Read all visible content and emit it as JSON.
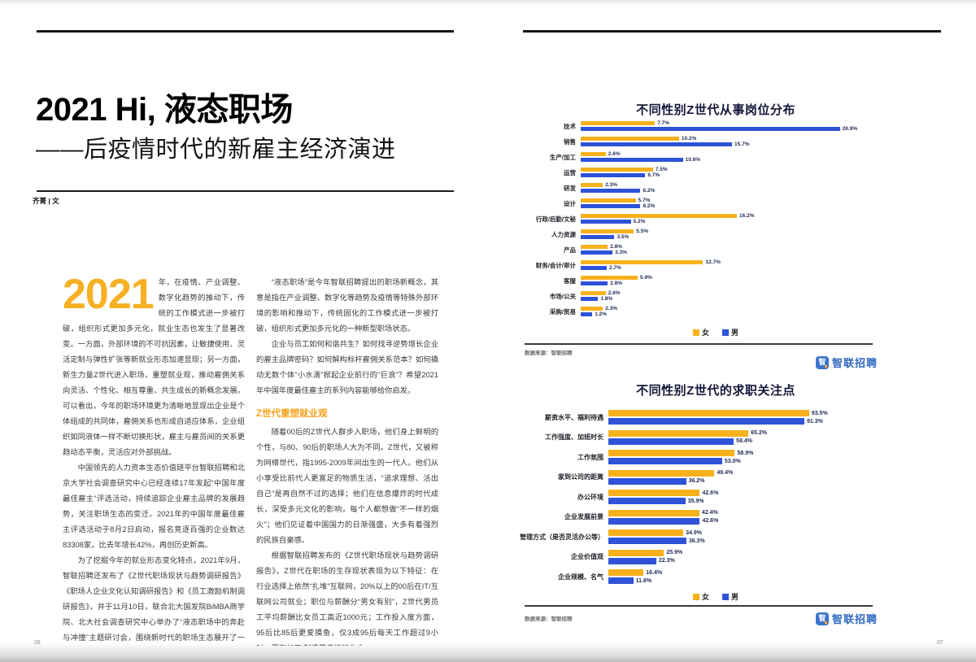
{
  "left_page": {
    "page_number": "06",
    "title": "2021 Hi, 液态职场",
    "subtitle": "——后疫情时代的新雇主经济演进",
    "byline": "齐菁 | 文",
    "dropcap": "2021",
    "col1_paragraphs": [
      "年，在疫情、产业调整、数字化趋势的推动下，传统的工作模式进一步被打破，组织形式更加多元化，就业生态也发生了显著改变。一方面，外部环境的不可抗因素，让敏捷使用、灵活定制与弹性扩张等新就业形态加速显现；另一方面，新生力量Z世代进入职场，重塑就业观，推动雇佣关系向灵活、个性化、相互尊重、共生成长的新概念发展。可以看出，今年的职场环境更为清晰地显现出企业是个体组成的共同体，雇佣关系也形成自适应体系，企业组织如同液体一样不断切换形状，雇主与雇员间的关系更趋动态平衡，灵活应对外部挑战。",
      "中国领先的人力资本生态价值链平台智联招聘和北京大学社会调查研究中心已经连续17年发起“中国年度最佳雇主”评选活动，持续追踪企业雇主品牌的发展趋势，关注职场生态的变迁。2021年的中国年度最佳雇主评选活动于8月2日启动，报名竞逐百强的企业数达83308家，比去年增长42%，再创历史新高。",
      "为了挖掘今年的就业形态变化特点，2021年9月，智联招聘还发布了《Z世代职场现状与趋势调研报告》《职场人企业文化认知调研报告》和《员工激励机制调研报告》，并于11月10日，联合北大国发院BiMBA商学院、北大社会调查研究中心举办了“液态职场中的奔赴与冲撞”主题研讨会，围绕新时代的职场生态展开了一场别开生面的思想碰撞。"
    ],
    "col2_paragraphs_before": [
      "“液态职场”是今年智联招聘提出的职场新概念，其意是指在产业调整、数字化等趋势及疫情等特殊外部环境的影响和推动下，传统固化的工作模式进一步被打破，组织形式更加多元化的一种新型职场状态。",
      "企业与员工如何和谐共生？如何找寻逆势增长企业的雇主品牌密码？如何解构标杆雇佣关系范本？如何撬动无数个体“小水滴”掀起企业前行的“巨浪”？希望2021年中国年度最佳雇主的系列内容能够给你启发。"
    ],
    "section_heading": "Z世代重塑就业观",
    "col2_paragraphs_after": [
      "随着00后的Z世代人群步入职场，他们身上鲜明的个性，与80、90后的职场人大为不同。Z世代，又被称为网络世代，指1995-2009年间出生的一代人。他们从小享受比前代人更富足的物质生活，“追求理想、活出自己”是再自然不过的选择；他们在信息爆炸的时代成长，深受多元文化的影响，每个人都想做“不一样的烟火”；他们见证着中国国力的日渐强盛，大多有着强烈的民族自豪感。",
      "根据智联招聘发布的《Z世代职场现状与趋势调研报告》，Z世代在职场的生存现状表现为以下特征：在行业选择上依然“扎堆”互联网，20%以上的00后在IT/互联网公司就业；职位与薪酬分“男女有别”，Z世代男员工平均薪酬比女员工高近1000元；工作投入度方面，95后比85后更爱摸鱼，仅3成95后每天工作超过9小时，而在加工/制造等传统行业中……"
    ]
  },
  "right_page": {
    "page_number": "07",
    "source_label": "数据来源：智联招聘",
    "logo_text": "智联招聘",
    "logo_glyph": "智",
    "legend": {
      "female": "女",
      "male": "男"
    },
    "colors": {
      "female": "#F6B11C",
      "male": "#2E53D8",
      "logo_blue": "#2E68C0",
      "accent_orange": "#F5A31B"
    }
  },
  "chart_data": [
    {
      "type": "bar",
      "orientation": "horizontal",
      "title": "不同性别Z世代从事岗位分布",
      "unit": "%",
      "xlim": [
        0,
        30
      ],
      "grid": false,
      "legend_position": "bottom",
      "categories": [
        "技术",
        "销售",
        "生产/加工",
        "运营",
        "研发",
        "设计",
        "行政/后勤/文秘",
        "人力资源",
        "产品",
        "财务/会计/审计",
        "客服",
        "市场/公关",
        "采购/贸易"
      ],
      "series": [
        {
          "name": "女",
          "values": [
            7.7,
            10.2,
            2.6,
            7.5,
            2.3,
            5.7,
            16.2,
            5.5,
            2.8,
            12.7,
            5.9,
            2.6,
            2.3
          ]
        },
        {
          "name": "男",
          "values": [
            26.9,
            15.7,
            10.6,
            6.7,
            6.2,
            6.2,
            5.2,
            3.5,
            3.3,
            2.7,
            2.8,
            1.8,
            1.2
          ]
        }
      ]
    },
    {
      "type": "bar",
      "orientation": "horizontal",
      "title": "不同性别Z世代的求职关注点",
      "unit": "%",
      "xlim": [
        0,
        100
      ],
      "grid": false,
      "legend_position": "bottom",
      "categories": [
        "薪资水平、福利待遇",
        "工作强度、加班时长",
        "工作氛围",
        "家到公司的距离",
        "办公环境",
        "企业发展前景",
        "管理方式（是否灵活办公等）",
        "企业价值观",
        "企业规模、名气"
      ],
      "series": [
        {
          "name": "女",
          "values": [
            93.5,
            65.2,
            58.9,
            49.4,
            42.6,
            42.4,
            34.9,
            25.9,
            16.4
          ]
        },
        {
          "name": "男",
          "values": [
            91.3,
            58.4,
            53.0,
            36.2,
            35.9,
            42.6,
            36.3,
            22.3,
            11.6
          ]
        }
      ]
    }
  ]
}
